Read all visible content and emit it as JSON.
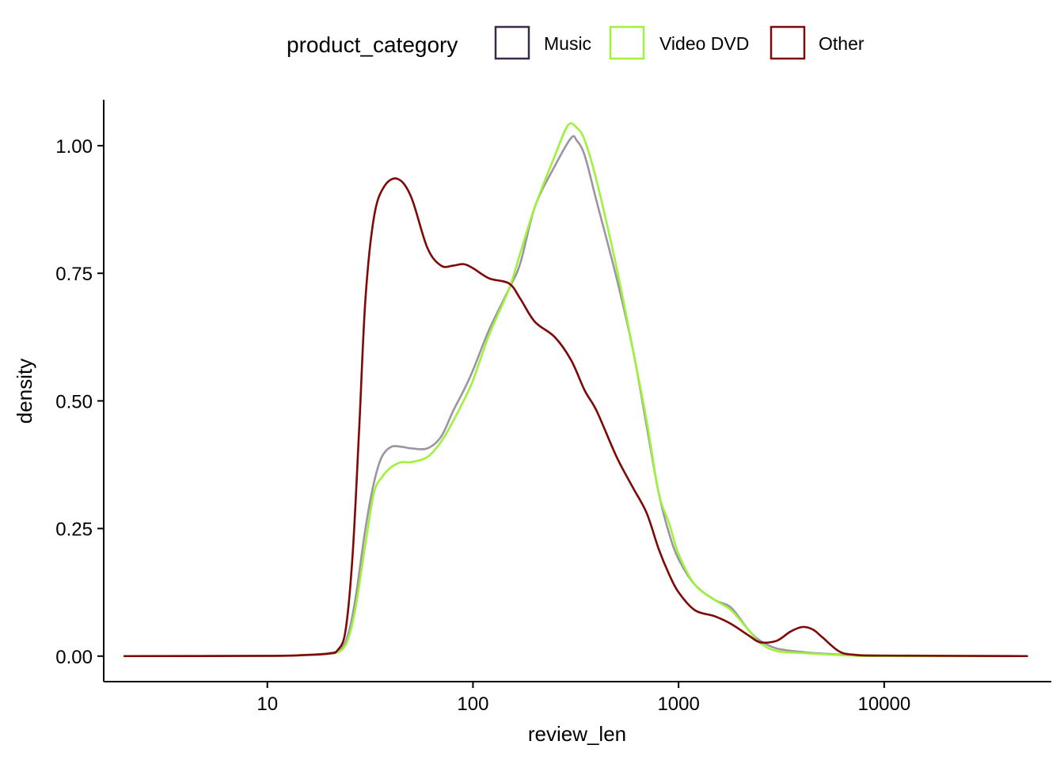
{
  "chart_data": {
    "type": "line",
    "title": "",
    "xlabel": "review_len",
    "ylabel": "density",
    "x_scale": "log10",
    "xlim": [
      1.6,
      65000
    ],
    "ylim": [
      -0.05,
      1.09
    ],
    "x_ticks": [
      10,
      100,
      1000,
      10000
    ],
    "x_tick_labels": [
      "10",
      "100",
      "1000",
      "10000"
    ],
    "y_ticks": [
      0,
      0.25,
      0.5,
      0.75,
      1.0
    ],
    "y_tick_labels": [
      "0.00",
      "0.25",
      "0.50",
      "0.75",
      "1.00"
    ],
    "grid": false,
    "legend": {
      "title": "product_category",
      "placement": "top",
      "entries": [
        "Music",
        "Video DVD",
        "Other"
      ]
    },
    "series": [
      {
        "name": "Music",
        "color": "#3b2a47",
        "opacity": 0.5,
        "points": [
          [
            2,
            0
          ],
          [
            10,
            0.0005
          ],
          [
            15,
            0.002
          ],
          [
            20,
            0.006
          ],
          [
            23,
            0.015
          ],
          [
            25,
            0.05
          ],
          [
            27,
            0.12
          ],
          [
            30,
            0.25
          ],
          [
            33,
            0.34
          ],
          [
            36,
            0.39
          ],
          [
            40,
            0.41
          ],
          [
            45,
            0.41
          ],
          [
            50,
            0.407
          ],
          [
            60,
            0.407
          ],
          [
            70,
            0.43
          ],
          [
            80,
            0.48
          ],
          [
            90,
            0.52
          ],
          [
            100,
            0.56
          ],
          [
            120,
            0.64
          ],
          [
            150,
            0.72
          ],
          [
            170,
            0.77
          ],
          [
            200,
            0.88
          ],
          [
            250,
            0.96
          ],
          [
            300,
            1.015
          ],
          [
            320,
            1.01
          ],
          [
            350,
            0.98
          ],
          [
            400,
            0.89
          ],
          [
            500,
            0.74
          ],
          [
            600,
            0.6
          ],
          [
            700,
            0.45
          ],
          [
            800,
            0.32
          ],
          [
            900,
            0.24
          ],
          [
            1000,
            0.19
          ],
          [
            1200,
            0.14
          ],
          [
            1500,
            0.11
          ],
          [
            1800,
            0.095
          ],
          [
            2200,
            0.05
          ],
          [
            2500,
            0.03
          ],
          [
            3000,
            0.015
          ],
          [
            4000,
            0.008
          ],
          [
            5000,
            0.005
          ],
          [
            7000,
            0.002
          ],
          [
            10000,
            0.001
          ],
          [
            50000,
            0
          ]
        ]
      },
      {
        "name": "Video DVD",
        "color": "#9ef23a",
        "opacity": 1,
        "points": [
          [
            2,
            0
          ],
          [
            10,
            0.0005
          ],
          [
            15,
            0.002
          ],
          [
            20,
            0.005
          ],
          [
            23,
            0.012
          ],
          [
            25,
            0.04
          ],
          [
            27,
            0.1
          ],
          [
            30,
            0.22
          ],
          [
            33,
            0.32
          ],
          [
            36,
            0.35
          ],
          [
            40,
            0.37
          ],
          [
            45,
            0.38
          ],
          [
            50,
            0.38
          ],
          [
            60,
            0.39
          ],
          [
            70,
            0.42
          ],
          [
            80,
            0.46
          ],
          [
            90,
            0.5
          ],
          [
            100,
            0.54
          ],
          [
            120,
            0.63
          ],
          [
            150,
            0.72
          ],
          [
            170,
            0.79
          ],
          [
            200,
            0.88
          ],
          [
            250,
            0.98
          ],
          [
            290,
            1.04
          ],
          [
            320,
            1.035
          ],
          [
            350,
            1.01
          ],
          [
            400,
            0.93
          ],
          [
            500,
            0.76
          ],
          [
            600,
            0.6
          ],
          [
            700,
            0.46
          ],
          [
            800,
            0.32
          ],
          [
            900,
            0.26
          ],
          [
            1000,
            0.2
          ],
          [
            1200,
            0.14
          ],
          [
            1500,
            0.11
          ],
          [
            1800,
            0.09
          ],
          [
            2200,
            0.05
          ],
          [
            2500,
            0.025
          ],
          [
            3000,
            0.01
          ],
          [
            4000,
            0.006
          ],
          [
            5000,
            0.004
          ],
          [
            7000,
            0.001
          ],
          [
            10000,
            0
          ],
          [
            50000,
            0
          ]
        ]
      },
      {
        "name": "Other",
        "color": "#7f0808",
        "opacity": 1,
        "points": [
          [
            2,
            0
          ],
          [
            10,
            0.0005
          ],
          [
            15,
            0.002
          ],
          [
            20,
            0.005
          ],
          [
            22,
            0.012
          ],
          [
            24,
            0.05
          ],
          [
            26,
            0.2
          ],
          [
            28,
            0.45
          ],
          [
            30,
            0.7
          ],
          [
            33,
            0.86
          ],
          [
            37,
            0.92
          ],
          [
            43,
            0.935
          ],
          [
            50,
            0.9
          ],
          [
            60,
            0.8
          ],
          [
            70,
            0.765
          ],
          [
            80,
            0.765
          ],
          [
            90,
            0.768
          ],
          [
            100,
            0.76
          ],
          [
            120,
            0.74
          ],
          [
            150,
            0.73
          ],
          [
            170,
            0.7
          ],
          [
            200,
            0.655
          ],
          [
            250,
            0.625
          ],
          [
            300,
            0.58
          ],
          [
            350,
            0.52
          ],
          [
            400,
            0.48
          ],
          [
            500,
            0.39
          ],
          [
            600,
            0.33
          ],
          [
            700,
            0.28
          ],
          [
            800,
            0.21
          ],
          [
            900,
            0.16
          ],
          [
            1000,
            0.125
          ],
          [
            1200,
            0.09
          ],
          [
            1500,
            0.078
          ],
          [
            1800,
            0.063
          ],
          [
            2200,
            0.04
          ],
          [
            2500,
            0.027
          ],
          [
            3000,
            0.03
          ],
          [
            3500,
            0.048
          ],
          [
            4000,
            0.057
          ],
          [
            4500,
            0.052
          ],
          [
            5000,
            0.037
          ],
          [
            6000,
            0.01
          ],
          [
            7000,
            0.003
          ],
          [
            10000,
            0.001
          ],
          [
            50000,
            0
          ]
        ]
      }
    ]
  }
}
